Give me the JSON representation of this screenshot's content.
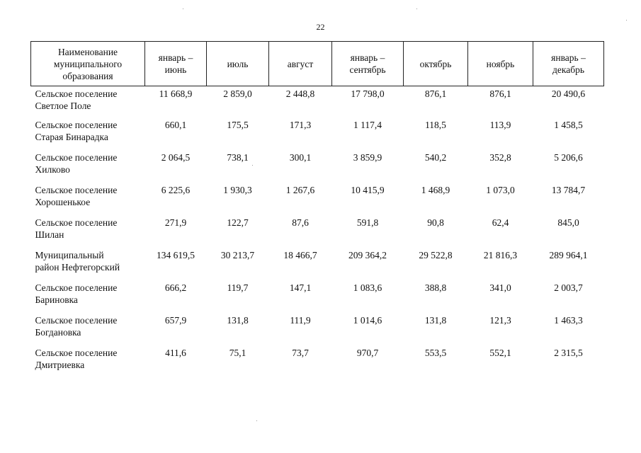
{
  "page_number": "22",
  "table": {
    "headers": [
      "Наименование\nмуниципального\nобразования",
      "январь –\nиюнь",
      "июль",
      "август",
      "январь –\nсентябрь",
      "октябрь",
      "ноябрь",
      "январь –\nдекабрь"
    ],
    "rows": [
      {
        "name": "Сельское поселение\nСветлое Поле",
        "values": [
          "11 668,9",
          "2 859,0",
          "2 448,8",
          "17 798,0",
          "876,1",
          "876,1",
          "20 490,6"
        ]
      },
      {
        "name": "Сельское поселение\nСтарая Бинарадка",
        "values": [
          "660,1",
          "175,5",
          "171,3",
          "1 117,4",
          "118,5",
          "113,9",
          "1 458,5"
        ]
      },
      {
        "name": "Сельское поселение\nХилково",
        "values": [
          "2 064,5",
          "738,1",
          "300,1",
          "3 859,9",
          "540,2",
          "352,8",
          "5 206,6"
        ]
      },
      {
        "name": "Сельское поселение\nХорошенькое",
        "values": [
          "6 225,6",
          "1 930,3",
          "1 267,6",
          "10 415,9",
          "1 468,9",
          "1 073,0",
          "13 784,7"
        ]
      },
      {
        "name": "Сельское поселение\nШилан",
        "values": [
          "271,9",
          "122,7",
          "87,6",
          "591,8",
          "90,8",
          "62,4",
          "845,0"
        ]
      },
      {
        "name": "Муниципальный\nрайон Нефтегорский",
        "values": [
          "134 619,5",
          "30 213,7",
          "18 466,7",
          "209 364,2",
          "29 522,8",
          "21 816,3",
          "289 964,1"
        ]
      },
      {
        "name": "Сельское поселение\nБариновка",
        "values": [
          "666,2",
          "119,7",
          "147,1",
          "1 083,6",
          "388,8",
          "341,0",
          "2 003,7"
        ]
      },
      {
        "name": "Сельское поселение\nБогдановка",
        "values": [
          "657,9",
          "131,8",
          "111,9",
          "1 014,6",
          "131,8",
          "121,3",
          "1 463,3"
        ]
      },
      {
        "name": "Сельское поселение\nДмитриевка",
        "values": [
          "411,6",
          "75,1",
          "73,7",
          "970,7",
          "553,5",
          "552,1",
          "2 315,5"
        ]
      }
    ]
  }
}
